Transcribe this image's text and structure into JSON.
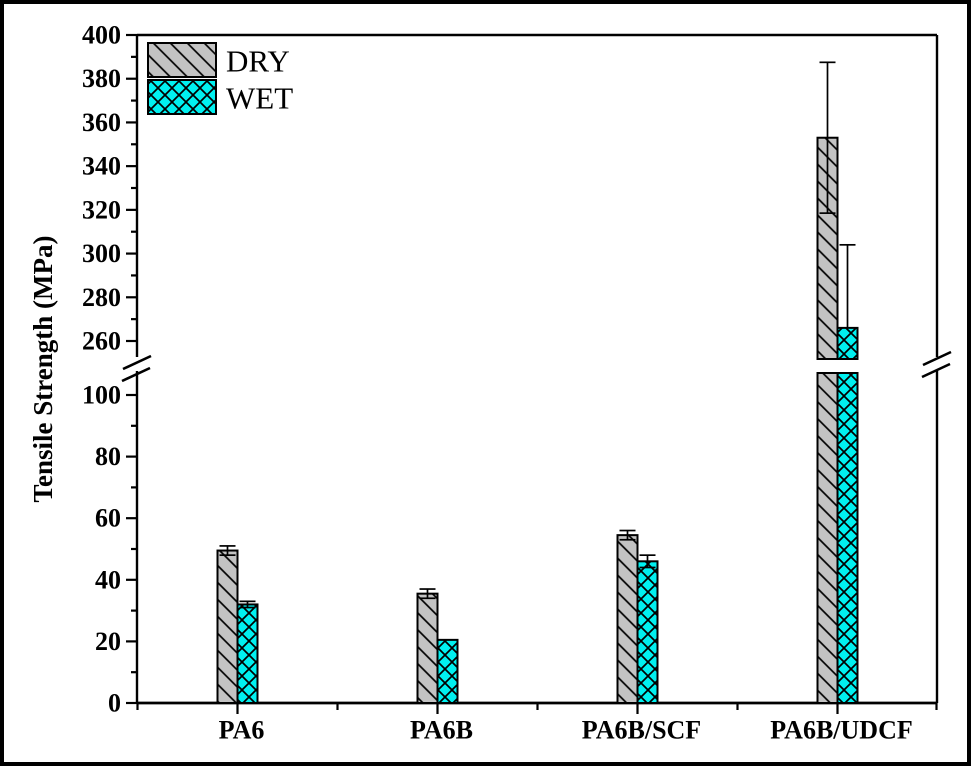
{
  "chart_data": {
    "type": "bar",
    "title": "",
    "ylabel": "Tensile Strength (MPa)",
    "xlabel": "",
    "categories": [
      "PA6",
      "PA6B",
      "PA6B/SCF",
      "PA6B/UDCF"
    ],
    "series": [
      {
        "name": "DRY",
        "fill": "#c3c3c3",
        "hatch": "diagonal",
        "values": [
          49.5,
          35.5,
          54.5,
          353
        ],
        "errors": [
          1.5,
          1.5,
          1.5,
          34.5
        ]
      },
      {
        "name": "WET",
        "fill": "#00f0f0",
        "hatch": "cross",
        "values": [
          32,
          20.5,
          46,
          266
        ],
        "errors": [
          1,
          0,
          2,
          38
        ]
      }
    ],
    "ylim": [
      0,
      400
    ],
    "axis_break": {
      "lower_visible_max": 107,
      "upper_visible_min": 250
    },
    "y_ticks_lower": [
      0,
      20,
      40,
      60,
      80,
      100
    ],
    "y_ticks_upper": [
      260,
      280,
      300,
      320,
      340,
      360,
      380,
      400
    ],
    "y_minor_ticks_lower": [
      10,
      30,
      50,
      70,
      90
    ],
    "y_minor_ticks_upper": [
      270,
      290,
      310,
      330,
      350,
      370,
      390
    ],
    "legend_position": "top-left",
    "grid": false,
    "colors": {
      "axis": "#000000",
      "dry_fill": "#c3c3c3",
      "wet_fill": "#00f0f0",
      "hatch_line": "#000000",
      "background": "#ffffff"
    }
  }
}
